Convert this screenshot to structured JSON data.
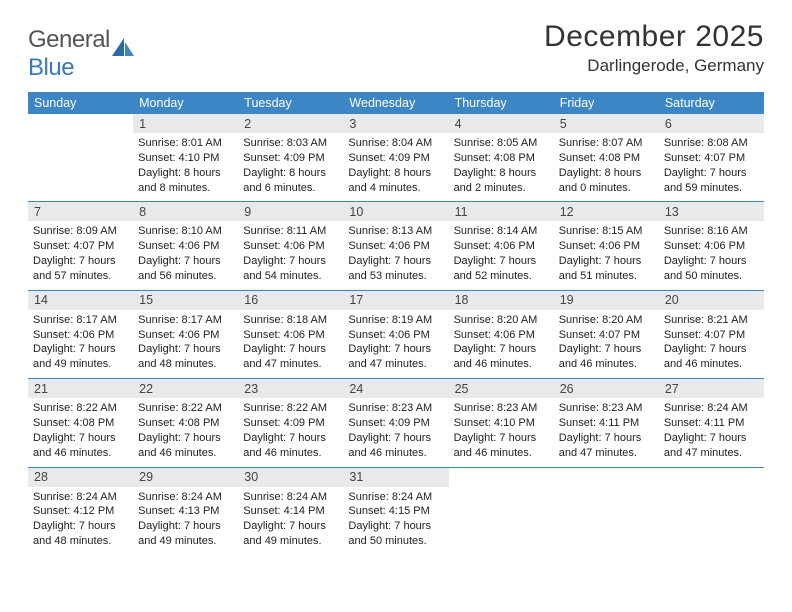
{
  "brand": {
    "word1": "General",
    "word2": "Blue"
  },
  "title": "December 2025",
  "location": "Darlingerode, Germany",
  "header_bg": "#3d86c6",
  "daynum_bg": "#e8e9ea",
  "weekdays": [
    "Sunday",
    "Monday",
    "Tuesday",
    "Wednesday",
    "Thursday",
    "Friday",
    "Saturday"
  ],
  "weeks": [
    [
      {
        "n": "",
        "sr": "",
        "ss": "",
        "dl": ""
      },
      {
        "n": "1",
        "sr": "Sunrise: 8:01 AM",
        "ss": "Sunset: 4:10 PM",
        "dl": "Daylight: 8 hours and 8 minutes."
      },
      {
        "n": "2",
        "sr": "Sunrise: 8:03 AM",
        "ss": "Sunset: 4:09 PM",
        "dl": "Daylight: 8 hours and 6 minutes."
      },
      {
        "n": "3",
        "sr": "Sunrise: 8:04 AM",
        "ss": "Sunset: 4:09 PM",
        "dl": "Daylight: 8 hours and 4 minutes."
      },
      {
        "n": "4",
        "sr": "Sunrise: 8:05 AM",
        "ss": "Sunset: 4:08 PM",
        "dl": "Daylight: 8 hours and 2 minutes."
      },
      {
        "n": "5",
        "sr": "Sunrise: 8:07 AM",
        "ss": "Sunset: 4:08 PM",
        "dl": "Daylight: 8 hours and 0 minutes."
      },
      {
        "n": "6",
        "sr": "Sunrise: 8:08 AM",
        "ss": "Sunset: 4:07 PM",
        "dl": "Daylight: 7 hours and 59 minutes."
      }
    ],
    [
      {
        "n": "7",
        "sr": "Sunrise: 8:09 AM",
        "ss": "Sunset: 4:07 PM",
        "dl": "Daylight: 7 hours and 57 minutes."
      },
      {
        "n": "8",
        "sr": "Sunrise: 8:10 AM",
        "ss": "Sunset: 4:06 PM",
        "dl": "Daylight: 7 hours and 56 minutes."
      },
      {
        "n": "9",
        "sr": "Sunrise: 8:11 AM",
        "ss": "Sunset: 4:06 PM",
        "dl": "Daylight: 7 hours and 54 minutes."
      },
      {
        "n": "10",
        "sr": "Sunrise: 8:13 AM",
        "ss": "Sunset: 4:06 PM",
        "dl": "Daylight: 7 hours and 53 minutes."
      },
      {
        "n": "11",
        "sr": "Sunrise: 8:14 AM",
        "ss": "Sunset: 4:06 PM",
        "dl": "Daylight: 7 hours and 52 minutes."
      },
      {
        "n": "12",
        "sr": "Sunrise: 8:15 AM",
        "ss": "Sunset: 4:06 PM",
        "dl": "Daylight: 7 hours and 51 minutes."
      },
      {
        "n": "13",
        "sr": "Sunrise: 8:16 AM",
        "ss": "Sunset: 4:06 PM",
        "dl": "Daylight: 7 hours and 50 minutes."
      }
    ],
    [
      {
        "n": "14",
        "sr": "Sunrise: 8:17 AM",
        "ss": "Sunset: 4:06 PM",
        "dl": "Daylight: 7 hours and 49 minutes."
      },
      {
        "n": "15",
        "sr": "Sunrise: 8:17 AM",
        "ss": "Sunset: 4:06 PM",
        "dl": "Daylight: 7 hours and 48 minutes."
      },
      {
        "n": "16",
        "sr": "Sunrise: 8:18 AM",
        "ss": "Sunset: 4:06 PM",
        "dl": "Daylight: 7 hours and 47 minutes."
      },
      {
        "n": "17",
        "sr": "Sunrise: 8:19 AM",
        "ss": "Sunset: 4:06 PM",
        "dl": "Daylight: 7 hours and 47 minutes."
      },
      {
        "n": "18",
        "sr": "Sunrise: 8:20 AM",
        "ss": "Sunset: 4:06 PM",
        "dl": "Daylight: 7 hours and 46 minutes."
      },
      {
        "n": "19",
        "sr": "Sunrise: 8:20 AM",
        "ss": "Sunset: 4:07 PM",
        "dl": "Daylight: 7 hours and 46 minutes."
      },
      {
        "n": "20",
        "sr": "Sunrise: 8:21 AM",
        "ss": "Sunset: 4:07 PM",
        "dl": "Daylight: 7 hours and 46 minutes."
      }
    ],
    [
      {
        "n": "21",
        "sr": "Sunrise: 8:22 AM",
        "ss": "Sunset: 4:08 PM",
        "dl": "Daylight: 7 hours and 46 minutes."
      },
      {
        "n": "22",
        "sr": "Sunrise: 8:22 AM",
        "ss": "Sunset: 4:08 PM",
        "dl": "Daylight: 7 hours and 46 minutes."
      },
      {
        "n": "23",
        "sr": "Sunrise: 8:22 AM",
        "ss": "Sunset: 4:09 PM",
        "dl": "Daylight: 7 hours and 46 minutes."
      },
      {
        "n": "24",
        "sr": "Sunrise: 8:23 AM",
        "ss": "Sunset: 4:09 PM",
        "dl": "Daylight: 7 hours and 46 minutes."
      },
      {
        "n": "25",
        "sr": "Sunrise: 8:23 AM",
        "ss": "Sunset: 4:10 PM",
        "dl": "Daylight: 7 hours and 46 minutes."
      },
      {
        "n": "26",
        "sr": "Sunrise: 8:23 AM",
        "ss": "Sunset: 4:11 PM",
        "dl": "Daylight: 7 hours and 47 minutes."
      },
      {
        "n": "27",
        "sr": "Sunrise: 8:24 AM",
        "ss": "Sunset: 4:11 PM",
        "dl": "Daylight: 7 hours and 47 minutes."
      }
    ],
    [
      {
        "n": "28",
        "sr": "Sunrise: 8:24 AM",
        "ss": "Sunset: 4:12 PM",
        "dl": "Daylight: 7 hours and 48 minutes."
      },
      {
        "n": "29",
        "sr": "Sunrise: 8:24 AM",
        "ss": "Sunset: 4:13 PM",
        "dl": "Daylight: 7 hours and 49 minutes."
      },
      {
        "n": "30",
        "sr": "Sunrise: 8:24 AM",
        "ss": "Sunset: 4:14 PM",
        "dl": "Daylight: 7 hours and 49 minutes."
      },
      {
        "n": "31",
        "sr": "Sunrise: 8:24 AM",
        "ss": "Sunset: 4:15 PM",
        "dl": "Daylight: 7 hours and 50 minutes."
      },
      {
        "n": "",
        "sr": "",
        "ss": "",
        "dl": ""
      },
      {
        "n": "",
        "sr": "",
        "ss": "",
        "dl": ""
      },
      {
        "n": "",
        "sr": "",
        "ss": "",
        "dl": ""
      }
    ]
  ]
}
